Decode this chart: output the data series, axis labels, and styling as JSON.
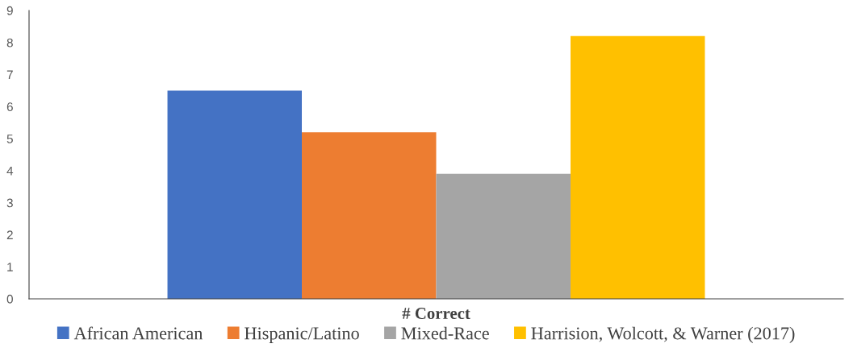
{
  "chart_data": {
    "type": "bar",
    "xlabel": "# Correct",
    "categories": [
      null
    ],
    "series": [
      {
        "name": "African American",
        "color": "#4472c4",
        "values": [
          6.5
        ]
      },
      {
        "name": "Hispanic/Latino",
        "color": "#ed7d31",
        "values": [
          5.2
        ]
      },
      {
        "name": "Mixed-Race",
        "color": "#a5a5a5",
        "values": [
          3.9
        ]
      },
      {
        "name": "Harrision, Wolcott, & Warner (2017)",
        "color": "#ffc000",
        "values": [
          8.2
        ]
      }
    ],
    "ylim": [
      0,
      9
    ],
    "yticks": [
      0,
      1,
      2,
      3,
      4,
      5,
      6,
      7,
      8,
      9
    ],
    "grid": false,
    "legend": "bottom"
  }
}
